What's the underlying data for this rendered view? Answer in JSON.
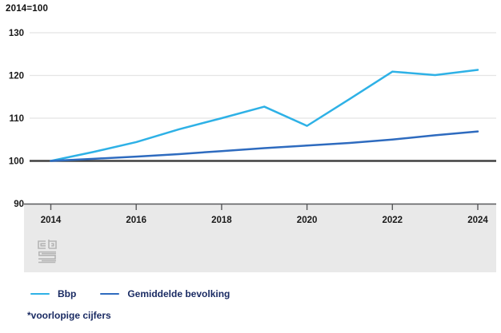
{
  "title": "2014=100",
  "footnote": "*voorlopige cijfers",
  "logo": "cbs",
  "colors": {
    "bbp_line": "#2EB1E6",
    "bevolking_line": "#2E6BBF",
    "baseline_line": "#404040",
    "gridline": "#E4E4E4",
    "axis_band": "#E9E9E9",
    "axis_line": "#58595B",
    "tick_label": "#1A1A1A",
    "legend_text": "#1A2B63",
    "logo_gray": "#B5B5B5"
  },
  "chart_data": {
    "type": "line",
    "title": "2014=100",
    "x": [
      2014,
      2015,
      2016,
      2017,
      2018,
      2019,
      2020,
      2021,
      2022,
      2023,
      2024
    ],
    "series": [
      {
        "name": "Bbp",
        "color": "#2EB1E6",
        "values": [
          100,
          102.1,
          104.4,
          107.4,
          110.0,
          112.7,
          108.2,
          114.5,
          120.9,
          120.1,
          121.3
        ]
      },
      {
        "name": "Gemiddelde bevolking",
        "color": "#2E6BBF",
        "values": [
          100,
          100.5,
          101.0,
          101.6,
          102.3,
          103.0,
          103.6,
          104.2,
          105.0,
          106.0,
          106.9
        ]
      }
    ],
    "ylim": [
      90,
      130
    ],
    "yticks": [
      130,
      120,
      110,
      100,
      90
    ],
    "xticks": [
      2014,
      2016,
      2018,
      2020,
      2022,
      2024
    ],
    "baseline": 100,
    "grid": true,
    "legend_position": "bottom",
    "footnote": "*voorlopige cijfers"
  }
}
